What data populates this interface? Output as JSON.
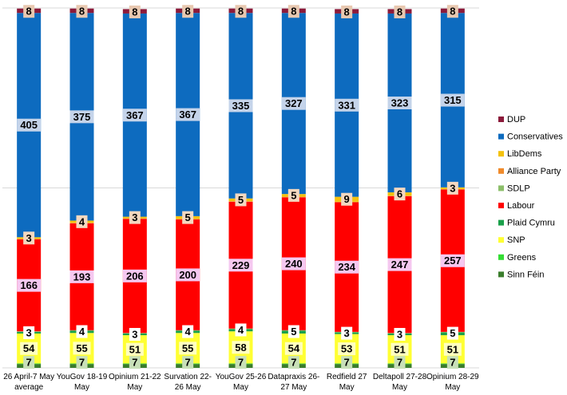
{
  "chart_data": {
    "type": "bar",
    "stacked": true,
    "title": "",
    "xlabel": "",
    "ylabel": "",
    "ylim": [
      0,
      650
    ],
    "grid": true,
    "legend_position": "right",
    "categories": [
      [
        "26 April-7 May",
        "average"
      ],
      [
        "YouGov 18-19",
        "May"
      ],
      [
        "Opinium 21-22",
        "May"
      ],
      [
        "Survation 22-",
        "26 May"
      ],
      [
        "YouGov 25-26",
        "May"
      ],
      [
        "Datapraxis 26-",
        "27 May"
      ],
      [
        "Redfield 27",
        "May"
      ],
      [
        "Deltapoll 27-28",
        "May"
      ],
      [
        "Opinium 28-29",
        "May"
      ]
    ],
    "series": [
      {
        "name": "Sinn Féin",
        "color": "#3a7d2c",
        "values": [
          7,
          7,
          7,
          7,
          7,
          7,
          7,
          7,
          7
        ]
      },
      {
        "name": "Greens",
        "color": "#33dd33",
        "values": [
          1,
          1,
          1,
          1,
          1,
          1,
          1,
          1,
          1
        ]
      },
      {
        "name": "SNP",
        "color": "#ffff33",
        "values": [
          54,
          55,
          51,
          55,
          58,
          54,
          53,
          51,
          51
        ]
      },
      {
        "name": "Plaid Cymru",
        "color": "#1aa04a",
        "values": [
          3,
          4,
          3,
          4,
          4,
          5,
          3,
          3,
          5
        ]
      },
      {
        "name": "SDLP",
        "color": "#8cbf6a",
        "values": [
          1,
          1,
          1,
          1,
          1,
          1,
          1,
          1,
          1
        ]
      },
      {
        "name": "Labour",
        "color": "#ff0000",
        "values": [
          166,
          193,
          206,
          200,
          229,
          240,
          234,
          247,
          257
        ]
      },
      {
        "name": "Alliance Party",
        "color": "#f08a2a",
        "values": [
          1,
          1,
          1,
          1,
          1,
          1,
          1,
          1,
          1
        ]
      },
      {
        "name": "LibDems",
        "color": "#f4c20d",
        "values": [
          3,
          4,
          3,
          5,
          5,
          5,
          9,
          6,
          3
        ]
      },
      {
        "name": "Conservatives",
        "color": "#0d6bbf",
        "values": [
          405,
          375,
          367,
          367,
          335,
          327,
          331,
          323,
          315
        ]
      },
      {
        "name": "DUP",
        "color": "#8b1a3a",
        "values": [
          8,
          8,
          8,
          8,
          8,
          8,
          8,
          8,
          8
        ]
      }
    ],
    "data_labels": [
      {
        "series": "DUP",
        "values": [
          "8",
          "8",
          "8",
          "8",
          "8",
          "8",
          "8",
          "8",
          "8"
        ],
        "bg": "#e8c8b0"
      },
      {
        "series": "Conservatives",
        "values": [
          "405",
          "375",
          "367",
          "367",
          "335",
          "327",
          "331",
          "323",
          "315"
        ],
        "bg": "#c5d4ea"
      },
      {
        "series": "LibDems",
        "values": [
          "3",
          "4",
          "3",
          "5",
          "5",
          "5",
          "9",
          "6",
          "3"
        ],
        "bg": "#f4d8c0"
      },
      {
        "series": "Labour",
        "values": [
          "166",
          "193",
          "206",
          "200",
          "229",
          "240",
          "234",
          "247",
          "257"
        ],
        "bg": "#f5c8f0"
      },
      {
        "series": "Plaid Cymru",
        "values": [
          "3",
          "4",
          "3",
          "4",
          "4",
          "5",
          "3",
          "3",
          "5"
        ],
        "bg": "#ffffff"
      },
      {
        "series": "SNP",
        "values": [
          "54",
          "55",
          "51",
          "55",
          "58",
          "54",
          "53",
          "51",
          "51"
        ],
        "bg": "#ffffc0"
      },
      {
        "series": "Sinn Féin",
        "values": [
          "7",
          "7",
          "7",
          "7",
          "7",
          "7",
          "7",
          "7",
          "7"
        ],
        "bg": "#c8e0b8"
      }
    ],
    "legend": [
      "DUP",
      "Conservatives",
      "LibDems",
      "Alliance Party",
      "SDLP",
      "Labour",
      "Plaid Cymru",
      "SNP",
      "Greens",
      "Sinn Féin"
    ]
  }
}
